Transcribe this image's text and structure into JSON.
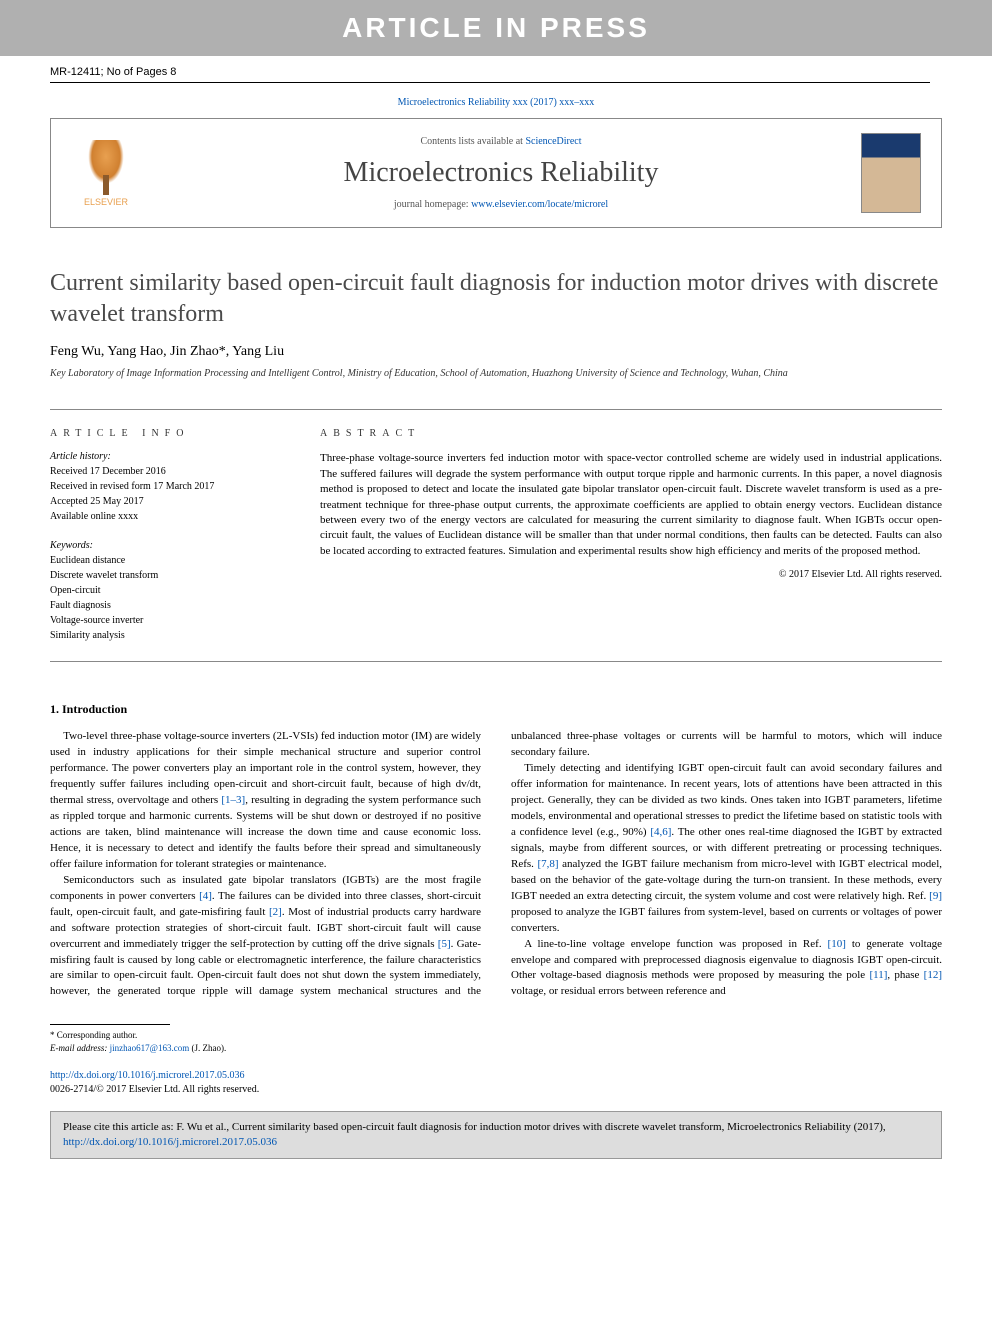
{
  "banner": "ARTICLE IN PRESS",
  "doc_id": "MR-12411; No of Pages 8",
  "journal_ref": "Microelectronics Reliability xxx (2017) xxx–xxx",
  "header": {
    "contents_prefix": "Contents lists available at ",
    "contents_link": "ScienceDirect",
    "journal_name": "Microelectronics Reliability",
    "homepage_prefix": "journal homepage: ",
    "homepage_url": "www.elsevier.com/locate/microrel",
    "publisher_label": "ELSEVIER",
    "cover_label": "MICROELECTRONICS RELIABILITY"
  },
  "title": "Current similarity based open-circuit fault diagnosis for induction motor drives with discrete wavelet transform",
  "authors": "Feng Wu, Yang Hao, Jin Zhao*, Yang Liu",
  "affiliation": "Key Laboratory of Image Information Processing and Intelligent Control, Ministry of Education, School of Automation, Huazhong University of Science and Technology, Wuhan, China",
  "article_info": {
    "heading": "ARTICLE INFO",
    "history_label": "Article history:",
    "history": [
      "Received 17 December 2016",
      "Received in revised form 17 March 2017",
      "Accepted 25 May 2017",
      "Available online xxxx"
    ],
    "keywords_label": "Keywords:",
    "keywords": [
      "Euclidean distance",
      "Discrete wavelet transform",
      "Open-circuit",
      "Fault diagnosis",
      "Voltage-source inverter",
      "Similarity analysis"
    ]
  },
  "abstract": {
    "heading": "ABSTRACT",
    "text": "Three-phase voltage-source inverters fed induction motor with space-vector controlled scheme are widely used in industrial applications. The suffered failures will degrade the system performance with output torque ripple and harmonic currents. In this paper, a novel diagnosis method is proposed to detect and locate the insulated gate bipolar translator open-circuit fault. Discrete wavelet transform is used as a pre-treatment technique for three-phase output currents, the approximate coefficients are applied to obtain energy vectors. Euclidean distance between every two of the energy vectors are calculated for measuring the current similarity to diagnose fault. When IGBTs occur open-circuit fault, the values of Euclidean distance will be smaller than that under normal conditions, then faults can be detected. Faults can also be located according to extracted features. Simulation and experimental results show high efficiency and merits of the proposed method.",
    "copyright": "© 2017 Elsevier Ltd. All rights reserved."
  },
  "intro_heading": "1. Introduction",
  "body": {
    "p1": "Two-level three-phase voltage-source inverters (2L-VSIs) fed induction motor (IM) are widely used in industry applications for their simple mechanical structure and superior control performance. The power converters play an important role in the control system, however, they frequently suffer failures including open-circuit and short-circuit fault, because of high dv/dt, thermal stress, overvoltage and others ",
    "p1_ref": "[1–3]",
    "p1b": ", resulting in degrading the system performance such as rippled torque and harmonic currents. Systems will be shut down or destroyed if no positive actions are taken, blind maintenance will increase the down time and cause economic loss. Hence, it is necessary to detect and identify the faults before their spread and simultaneously offer failure information for tolerant strategies or maintenance.",
    "p2": "Semiconductors such as insulated gate bipolar translators (IGBTs) are the most fragile components in power converters ",
    "p2_ref": "[4]",
    "p2b": ". The failures can be divided into three classes, short-circuit fault, open-circuit fault, and gate-misfiring fault ",
    "p2_ref2": "[2]",
    "p2c": ". Most of industrial products carry hardware and software protection strategies of short-circuit fault. IGBT short-circuit fault will cause overcurrent and immediately trigger the self-protection by cutting off the drive signals ",
    "p2_ref3": "[5]",
    "p2d": ". Gate-misfiring fault is caused by long cable or electromagnetic interference, the failure characteristics are similar to open-circuit fault. Open-circuit fault does not shut down the system immediately, however, the generated torque ripple will damage system mechanical structures and the unbalanced three-phase voltages or currents will be harmful to motors, which will induce secondary failure.",
    "p3": "Timely detecting and identifying IGBT open-circuit fault can avoid secondary failures and offer information for maintenance. In recent years, lots of attentions have been attracted in this project. Generally, they can be divided as two kinds. Ones taken into IGBT parameters, lifetime models, environmental and operational stresses to predict the lifetime based on statistic tools with a confidence level (e.g., 90%) ",
    "p3_ref": "[4,6]",
    "p3b": ". The other ones real-time diagnosed the IGBT by extracted signals, maybe from different sources, or with different pretreating or processing techniques. Refs. ",
    "p3_ref2": "[7,8]",
    "p3c": " analyzed the IGBT failure mechanism from micro-level with IGBT electrical model, based on the behavior of the gate-voltage during the turn-on transient. In these methods, every IGBT needed an extra detecting circuit, the system volume and cost were relatively high. Ref. ",
    "p3_ref3": "[9]",
    "p3d": " proposed to analyze the IGBT failures from system-level, based on currents or voltages of power converters.",
    "p4": "A line-to-line voltage envelope function was proposed in Ref. ",
    "p4_ref": "[10]",
    "p4b": " to generate voltage envelope and compared with preprocessed diagnosis eigenvalue to diagnosis IGBT open-circuit. Other voltage-based diagnosis methods were proposed by measuring the pole ",
    "p4_ref2": "[11]",
    "p4c": ", phase ",
    "p4_ref3": "[12]",
    "p4d": " voltage, or residual errors between reference and"
  },
  "footnote": {
    "corresponding": "* Corresponding author.",
    "email_label": "E-mail address: ",
    "email": "jinzhao617@163.com",
    "email_suffix": " (J. Zhao)."
  },
  "doi": {
    "url": "http://dx.doi.org/10.1016/j.microrel.2017.05.036",
    "issn_line": "0026-2714/© 2017 Elsevier Ltd. All rights reserved."
  },
  "cite_box": {
    "prefix": "Please cite this article as: F. Wu et al., Current similarity based open-circuit fault diagnosis for induction motor drives with discrete wavelet transform,  Microelectronics Reliability (2017), ",
    "url": "http://dx.doi.org/10.1016/j.microrel.2017.05.036"
  },
  "colors": {
    "banner_bg": "#b0b0b0",
    "link": "#0056b3",
    "cite_bg": "#dddddd",
    "border": "#888888",
    "elsevier_orange": "#e8a050"
  }
}
